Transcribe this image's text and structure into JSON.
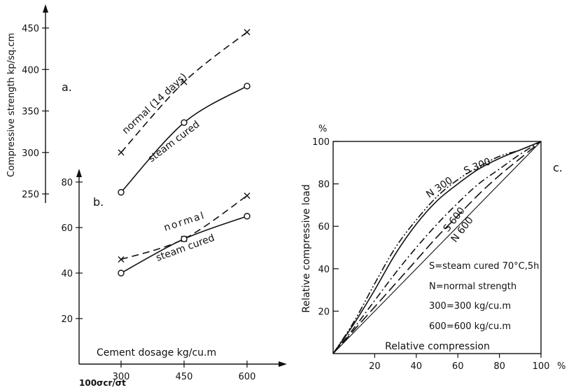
{
  "chart_data": [
    {
      "type": "line",
      "panel_label": "a.",
      "ylabel": "Compressive strength kp/sq.cm",
      "ylim": [
        250,
        450
      ],
      "yticks": [
        "250",
        "300",
        "350",
        "400",
        "450"
      ],
      "x": [
        300,
        450,
        600
      ],
      "series": [
        {
          "name": "normal (14 days)",
          "style": "dashed",
          "marker": "x",
          "values": [
            300,
            385,
            445
          ]
        },
        {
          "name": "steam cured",
          "style": "solid",
          "marker": "o",
          "values": [
            252,
            336,
            380
          ]
        }
      ]
    },
    {
      "type": "line",
      "panel_label": "b.",
      "xlabel": "Cement dosage kg/cu.m",
      "ylabel_below": "100σcr/σt",
      "xticks": [
        "300",
        "450",
        "600"
      ],
      "yticks": [
        "20",
        "40",
        "60",
        "80"
      ],
      "ylim": [
        0,
        90
      ],
      "x": [
        300,
        450,
        600
      ],
      "series": [
        {
          "name": "normal",
          "style": "dashed",
          "marker": "x",
          "values": [
            46,
            55,
            74
          ]
        },
        {
          "name": "steam cured",
          "style": "solid",
          "marker": "o",
          "values": [
            40,
            55,
            65
          ]
        }
      ]
    },
    {
      "type": "line",
      "panel_label": "c.",
      "xlabel": "Relative compression",
      "ylabel": "Relative compressive load",
      "x_unit": "%",
      "y_unit": "%",
      "xlim": [
        0,
        100
      ],
      "ylim": [
        0,
        100
      ],
      "xticks": [
        "20",
        "40",
        "60",
        "80",
        "100"
      ],
      "yticks": [
        "20",
        "40",
        "60",
        "80",
        "100"
      ],
      "legend": [
        "S=steam cured 70°C,5h",
        "N=normal strength",
        "300=300 kg/cu.m",
        "600=600 kg/cu.m"
      ],
      "series": [
        {
          "name": "N 300",
          "style": "dash-dot-dot",
          "x": [
            0,
            10,
            20,
            30,
            40,
            50,
            60,
            70,
            80,
            90,
            100
          ],
          "values": [
            0,
            15,
            33,
            50,
            63,
            74,
            82,
            88,
            93,
            96,
            100
          ]
        },
        {
          "name": "S 300",
          "style": "solid",
          "x": [
            0,
            10,
            20,
            30,
            40,
            50,
            60,
            70,
            80,
            90,
            100
          ],
          "values": [
            0,
            14,
            30,
            47,
            61,
            72,
            80,
            87,
            92,
            96,
            100
          ]
        },
        {
          "name": "S 600",
          "style": "dash-dot",
          "x": [
            0,
            10,
            20,
            30,
            40,
            50,
            60,
            70,
            80,
            90,
            100
          ],
          "values": [
            0,
            12,
            25,
            38,
            50,
            61,
            71,
            80,
            87,
            94,
            100
          ]
        },
        {
          "name": "N 600",
          "style": "dashed",
          "x": [
            0,
            10,
            20,
            30,
            40,
            50,
            60,
            70,
            80,
            90,
            100
          ],
          "values": [
            0,
            11,
            22,
            33,
            44,
            55,
            65,
            75,
            84,
            92,
            100
          ]
        },
        {
          "name": "",
          "style": "solid-thin",
          "x": [
            0,
            100
          ],
          "values": [
            0,
            100
          ]
        }
      ]
    }
  ]
}
